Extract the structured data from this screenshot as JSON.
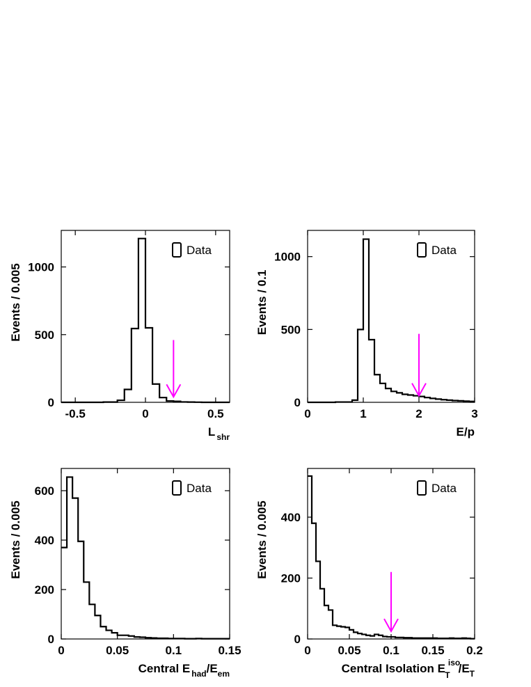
{
  "chart_data": [
    {
      "type": "histogram",
      "xlabel": "L",
      "xlabel_sub": "shr",
      "xlabel_sup": "",
      "ylabel": "Events / 0.005",
      "xlim": [
        -0.6,
        0.6
      ],
      "ylim": [
        0,
        1270
      ],
      "xticks": [
        -0.5,
        0,
        0.5
      ],
      "xtick_labels": [
        "-0.5",
        "0",
        "0.5"
      ],
      "yticks": [
        0,
        500,
        1000
      ],
      "ytick_labels": [
        "0",
        "500",
        "1000"
      ],
      "legend": "Data",
      "legend_position": "top-right",
      "bins": {
        "edges": [
          -0.6,
          -0.5,
          -0.4,
          -0.3,
          -0.2,
          -0.15,
          -0.1,
          -0.05,
          0,
          0.05,
          0.1,
          0.15,
          0.2,
          0.25,
          0.3,
          0.35,
          0.4,
          0.5,
          0.6
        ],
        "counts": [
          0,
          0,
          0,
          2,
          15,
          95,
          545,
          1210,
          550,
          135,
          35,
          10,
          7,
          3,
          2,
          1,
          0,
          0
        ]
      },
      "arrow": {
        "x": 0.2,
        "y_from": 460,
        "y_to": 40,
        "color": "#ff00ff"
      }
    },
    {
      "type": "histogram",
      "xlabel": "E/p",
      "xlabel_sub": "",
      "xlabel_sup": "",
      "ylabel": "Events / 0.1",
      "xlim": [
        0,
        3
      ],
      "ylim": [
        0,
        1180
      ],
      "xticks": [
        0,
        1,
        2,
        3
      ],
      "xtick_labels": [
        "0",
        "1",
        "2",
        "3"
      ],
      "yticks": [
        0,
        500,
        1000
      ],
      "ytick_labels": [
        "0",
        "500",
        "1000"
      ],
      "legend": "Data",
      "legend_position": "top-right",
      "bins": {
        "edges": [
          0,
          0.5,
          0.8,
          0.9,
          1.0,
          1.1,
          1.2,
          1.3,
          1.4,
          1.5,
          1.6,
          1.7,
          1.8,
          1.9,
          2.0,
          2.1,
          2.2,
          2.3,
          2.4,
          2.5,
          2.6,
          2.7,
          2.8,
          2.9,
          3.0
        ],
        "counts": [
          0,
          2,
          15,
          500,
          1120,
          430,
          190,
          130,
          95,
          75,
          65,
          55,
          50,
          45,
          40,
          33,
          27,
          22,
          18,
          15,
          12,
          10,
          8,
          6
        ]
      },
      "arrow": {
        "x": 2.0,
        "y_from": 470,
        "y_to": 45,
        "color": "#ff00ff"
      }
    },
    {
      "type": "histogram",
      "xlabel": "Central E",
      "xlabel_sub": "had",
      "xlabel_suffix": "/E",
      "xlabel_suffix_sub": "em",
      "xlabel_sup": "",
      "ylabel": "Events / 0.005",
      "xlim": [
        0,
        0.15
      ],
      "ylim": [
        0,
        690
      ],
      "xticks": [
        0,
        0.05,
        0.1,
        0.15
      ],
      "xtick_labels": [
        "0",
        "0.05",
        "0.1",
        "0.15"
      ],
      "yticks": [
        0,
        200,
        400,
        600
      ],
      "ytick_labels": [
        "0",
        "200",
        "400",
        "600"
      ],
      "legend": "Data",
      "legend_position": "top-right",
      "bins": {
        "edges": [
          0,
          0.005,
          0.01,
          0.015,
          0.02,
          0.025,
          0.03,
          0.035,
          0.04,
          0.045,
          0.05,
          0.055,
          0.06,
          0.065,
          0.07,
          0.075,
          0.08,
          0.085,
          0.09,
          0.095,
          0.1,
          0.105,
          0.11,
          0.115,
          0.12,
          0.125,
          0.13,
          0.135,
          0.14,
          0.145,
          0.15
        ],
        "counts": [
          370,
          655,
          570,
          395,
          230,
          140,
          95,
          50,
          35,
          25,
          15,
          15,
          12,
          8,
          7,
          5,
          4,
          3,
          3,
          2,
          2,
          2,
          1,
          1,
          2,
          1,
          1,
          1,
          1,
          1
        ]
      },
      "arrow": null
    },
    {
      "type": "histogram",
      "xlabel": "Central Isolation E",
      "xlabel_sub": "T",
      "xlabel_sup": "iso",
      "xlabel_suffix": "/E",
      "xlabel_suffix_sub": "T",
      "ylabel": "Events / 0.005",
      "xlim": [
        0,
        0.2
      ],
      "ylim": [
        0,
        560
      ],
      "xticks": [
        0,
        0.05,
        0.1,
        0.15,
        0.2
      ],
      "xtick_labels": [
        "0",
        "0.05",
        "0.1",
        "0.15",
        "0.2"
      ],
      "yticks": [
        0,
        200,
        400
      ],
      "ytick_labels": [
        "0",
        "200",
        "400"
      ],
      "legend": "Data",
      "legend_position": "top-right",
      "bins": {
        "edges": [
          0,
          0.005,
          0.01,
          0.015,
          0.02,
          0.025,
          0.03,
          0.035,
          0.04,
          0.045,
          0.05,
          0.055,
          0.06,
          0.065,
          0.07,
          0.075,
          0.08,
          0.085,
          0.09,
          0.095,
          0.1,
          0.105,
          0.11,
          0.115,
          0.12,
          0.125,
          0.13,
          0.135,
          0.14,
          0.145,
          0.15,
          0.155,
          0.16,
          0.165,
          0.17,
          0.175,
          0.18,
          0.185,
          0.19,
          0.195,
          0.2
        ],
        "counts": [
          535,
          380,
          255,
          165,
          110,
          95,
          45,
          42,
          40,
          38,
          30,
          22,
          18,
          15,
          12,
          10,
          15,
          12,
          8,
          7,
          7,
          5,
          5,
          4,
          4,
          3,
          3,
          3,
          3,
          3,
          3,
          2,
          2,
          2,
          3,
          2,
          2,
          3,
          2,
          1
        ]
      },
      "arrow": {
        "x": 0.1,
        "y_from": 220,
        "y_to": 25,
        "color": "#ff00ff"
      }
    }
  ]
}
